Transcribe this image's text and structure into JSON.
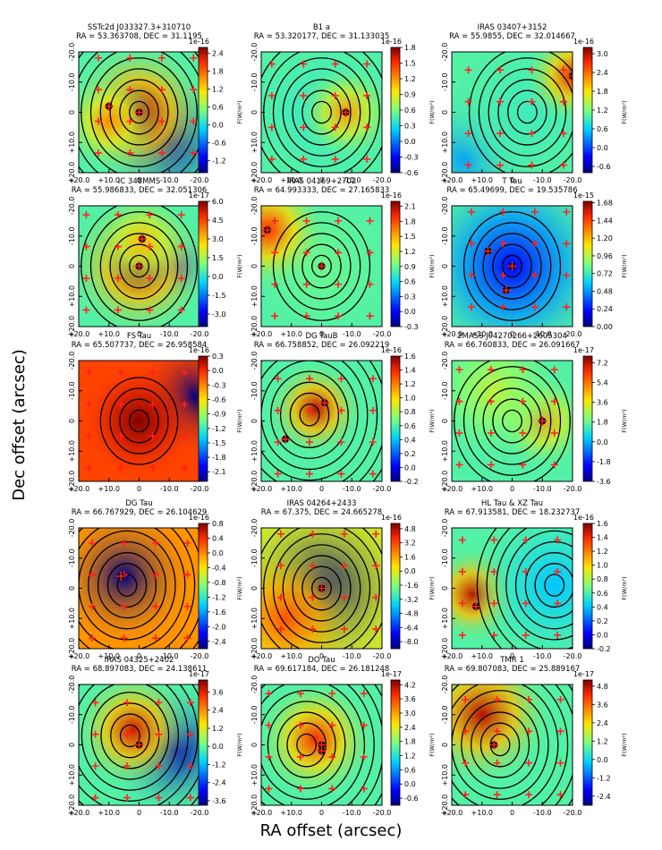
{
  "figure": {
    "xlabel": "RA offset (arcsec)",
    "ylabel": "Dec offset (arcsec)",
    "cbar_unit_label": "F(W/m²)",
    "x_ticks": [
      "+20.0",
      "+10.0",
      "0",
      "-10.0",
      "-20.0"
    ],
    "y_ticks": [
      "-20.0",
      "-10.0",
      "0",
      "+10.0",
      "+20.0"
    ]
  },
  "colors": {
    "low": "#0a1ee0",
    "mid": "#5bd2a0",
    "high": "#d6201a",
    "contour": "#000000",
    "marker": "#ff2020"
  },
  "chart_data": [
    {
      "type": "heatmap",
      "name": "SSTc2d J033327.3+310710",
      "coords": "RA = 53.363708, DEC = 31.1195",
      "exponent": "1e-16",
      "cbar_ticks": [
        "2.4",
        "1.8",
        "1.2",
        "0.6",
        "0.0",
        "-0.6",
        "-1.2"
      ],
      "vmin": -1.6,
      "vmax": 2.6,
      "xlim": [
        20,
        -20
      ],
      "ylim": [
        -20,
        20
      ],
      "sources": [
        {
          "ra": 0,
          "dec": 0,
          "amp": 2.4,
          "w": 6
        },
        {
          "ra": 10,
          "dec": 3,
          "amp": 1.6,
          "w": 4
        }
      ],
      "dips": [
        {
          "ra": -10,
          "dec": 10,
          "amp": 1.5,
          "w": 6
        }
      ],
      "contour_center": {
        "ra": 0,
        "dec": 0
      },
      "contour_levels": 8,
      "markers": [
        {
          "ra": 0,
          "dec": 0
        },
        {
          "ra": 10,
          "dec": -2
        }
      ]
    },
    {
      "type": "heatmap",
      "name": "B1 a",
      "coords": "RA = 53.320177, DEC = 31.133035",
      "exponent": "1e-16",
      "cbar_ticks": [
        "1.8",
        "1.5",
        "1.2",
        "0.9",
        "0.6",
        "0.3",
        "0.0",
        "-0.3",
        "-0.6"
      ],
      "vmin": -0.6,
      "vmax": 1.8,
      "xlim": [
        20,
        -20
      ],
      "ylim": [
        -20,
        20
      ],
      "sources": [
        {
          "ra": 0,
          "dec": 0,
          "amp": 0.4,
          "w": 7
        },
        {
          "ra": -8,
          "dec": 0,
          "amp": 1.2,
          "w": 4
        }
      ],
      "dips": [],
      "contour_center": {
        "ra": 0,
        "dec": 0
      },
      "contour_levels": 7,
      "markers": [
        {
          "ra": -8,
          "dec": 0
        }
      ]
    },
    {
      "type": "heatmap",
      "name": "IRAS 03407+3152",
      "coords": "RA = 55.9855, DEC = 32.014667",
      "exponent": "1e-16",
      "cbar_ticks": [
        "3.0",
        "2.4",
        "1.8",
        "1.2",
        "0.6",
        "0.0",
        "-0.6"
      ],
      "vmin": -0.8,
      "vmax": 3.2,
      "xlim": [
        20,
        -20
      ],
      "ylim": [
        -20,
        20
      ],
      "sources": [
        {
          "ra": -5,
          "dec": 0,
          "amp": 0.9,
          "w": 7
        },
        {
          "ra": -20,
          "dec": -12,
          "amp": 2.8,
          "w": 4
        }
      ],
      "dips": [
        {
          "ra": 15,
          "dec": 15,
          "amp": 0.6,
          "w": 6
        }
      ],
      "contour_center": {
        "ra": -5,
        "dec": 0
      },
      "contour_levels": 6,
      "markers": [
        {
          "ra": -20,
          "dec": -12
        }
      ]
    },
    {
      "type": "heatmap",
      "name": "IC 348MMS",
      "coords": "RA = 55.986833, DEC = 32.051306",
      "exponent": "1e-17",
      "cbar_ticks": [
        "6.0",
        "4.5",
        "3.0",
        "1.5",
        "0.0",
        "-1.5",
        "-3.0"
      ],
      "vmin": -4.0,
      "vmax": 6.0,
      "xlim": [
        20,
        -20
      ],
      "ylim": [
        -20,
        20
      ],
      "sources": [
        {
          "ra": 0,
          "dec": 0,
          "amp": 5.5,
          "w": 6
        },
        {
          "ra": -1,
          "dec": -8,
          "amp": 3.0,
          "w": 4
        }
      ],
      "dips": [
        {
          "ra": -12,
          "dec": 0,
          "amp": 3.0,
          "w": 3
        }
      ],
      "contour_center": {
        "ra": 0,
        "dec": 0
      },
      "contour_levels": 6,
      "markers": [
        {
          "ra": 0,
          "dec": 0
        },
        {
          "ra": -1,
          "dec": -9
        }
      ]
    },
    {
      "type": "heatmap",
      "name": "IRAS 04169+2702",
      "coords": "RA = 64.993333, DEC = 27.165833",
      "exponent": "1e-16",
      "cbar_ticks": [
        "2.1",
        "1.8",
        "1.5",
        "1.2",
        "0.9",
        "0.6",
        "0.3",
        "0.0",
        "-0.3"
      ],
      "vmin": -0.3,
      "vmax": 2.2,
      "xlim": [
        20,
        -20
      ],
      "ylim": [
        -20,
        20
      ],
      "sources": [
        {
          "ra": 0,
          "dec": 0,
          "amp": 0.9,
          "w": 7
        },
        {
          "ra": 18,
          "dec": -12,
          "amp": 1.9,
          "w": 5
        }
      ],
      "dips": [],
      "contour_center": {
        "ra": 0,
        "dec": 0
      },
      "contour_levels": 5,
      "markers": [
        {
          "ra": 0,
          "dec": 0
        },
        {
          "ra": 18,
          "dec": -12
        }
      ]
    },
    {
      "type": "heatmap",
      "name": "T Tau",
      "coords": "RA = 65.49699, DEC = 19.535786",
      "exponent": "1e-15",
      "cbar_ticks": [
        "1.68",
        "1.44",
        "1.20",
        "0.96",
        "0.72",
        "0.48",
        "0.24",
        "0.00"
      ],
      "vmin": 0.0,
      "vmax": 1.7,
      "xlim": [
        20,
        -20
      ],
      "ylim": [
        -20,
        20
      ],
      "sources": [
        {
          "ra": 0,
          "dec": 0,
          "amp": 0.2,
          "w": 9
        }
      ],
      "dips": [],
      "contour_center": {
        "ra": 0,
        "dec": 0
      },
      "contour_levels": 5,
      "markers": [
        {
          "ra": 0,
          "dec": 0
        },
        {
          "ra": 8,
          "dec": -5
        },
        {
          "ra": 2,
          "dec": 8
        }
      ]
    },
    {
      "type": "heatmap",
      "name": "FS Tau",
      "coords": "RA = 65.507737, DEC = 26.958584",
      "exponent": "1e-16",
      "cbar_ticks": [
        "0.3",
        "0.0",
        "-0.3",
        "-0.6",
        "-0.9",
        "-1.2",
        "-1.5",
        "-1.8",
        "-2.1"
      ],
      "vmin": -2.3,
      "vmax": 0.3,
      "xlim": [
        20,
        -20
      ],
      "ylim": [
        -20,
        20
      ],
      "sources": [
        {
          "ra": 0,
          "dec": 0,
          "amp": 0.5,
          "w": 5
        }
      ],
      "dips": [
        {
          "ra": -18,
          "dec": -8,
          "amp": 2.4,
          "w": 5
        }
      ],
      "base": 0.85,
      "contour_center": {
        "ra": 0,
        "dec": 0
      },
      "contour_levels": 4,
      "markers": []
    },
    {
      "type": "heatmap",
      "name": "DG TauB",
      "coords": "RA = 66.758852, DEC = 26.092219",
      "exponent": "1e-16",
      "cbar_ticks": [
        "1.6",
        "1.4",
        "1.2",
        "1.0",
        "0.8",
        "0.6",
        "0.4",
        "0.2",
        "0.0",
        "-0.2"
      ],
      "vmin": -0.2,
      "vmax": 1.6,
      "xlim": [
        20,
        -20
      ],
      "ylim": [
        -20,
        20
      ],
      "sources": [
        {
          "ra": 2,
          "dec": -4,
          "amp": 1.5,
          "w": 4
        }
      ],
      "dips": [],
      "contour_center": {
        "ra": 4,
        "dec": -2
      },
      "contour_levels": 9,
      "markers": [
        {
          "ra": -1,
          "dec": -6
        },
        {
          "ra": 12,
          "dec": 6
        }
      ]
    },
    {
      "type": "heatmap",
      "name": "2MASS J04270266+2605304",
      "coords": "RA = 66.760833, DEC = 26.091667",
      "exponent": "1e-17",
      "cbar_ticks": [
        "7.2",
        "5.4",
        "3.6",
        "1.8",
        "0.0",
        "-1.8",
        "-3.6"
      ],
      "vmin": -3.6,
      "vmax": 7.8,
      "xlim": [
        20,
        -20
      ],
      "ylim": [
        -20,
        20
      ],
      "sources": [
        {
          "ra": -10,
          "dec": 0,
          "amp": 5.0,
          "w": 4
        },
        {
          "ra": 6,
          "dec": -10,
          "amp": 3.0,
          "w": 6
        }
      ],
      "dips": [],
      "contour_center": {
        "ra": 0,
        "dec": 0
      },
      "contour_levels": 6,
      "markers": [
        {
          "ra": -10,
          "dec": 0
        }
      ]
    },
    {
      "type": "heatmap",
      "name": "DG Tau",
      "coords": "RA = 66.767929, DEC = 26.104629",
      "exponent": "1e-16",
      "cbar_ticks": [
        "0.8",
        "0.4",
        "0.0",
        "-0.4",
        "-0.8",
        "-1.2",
        "-1.6",
        "-2.0",
        "-2.4"
      ],
      "vmin": -2.6,
      "vmax": 0.8,
      "xlim": [
        20,
        -20
      ],
      "ylim": [
        -20,
        20
      ],
      "sources": [],
      "dips": [
        {
          "ra": 5,
          "dec": -4,
          "amp": 3.0,
          "w": 6
        }
      ],
      "base": 0.75,
      "contour_center": {
        "ra": 4,
        "dec": -1
      },
      "contour_levels": 10,
      "markers": [
        {
          "ra": 6,
          "dec": -4
        }
      ]
    },
    {
      "type": "heatmap",
      "name": "IRAS 04264+2433",
      "coords": "RA = 67.375, DEC = 24.665278",
      "exponent": "1e-16",
      "cbar_ticks": [
        "4.8",
        "3.2",
        "1.6",
        "0.0",
        "-1.6",
        "-3.2",
        "-4.8",
        "-6.4",
        "-8.0"
      ],
      "vmin": -8.8,
      "vmax": 5.4,
      "xlim": [
        20,
        -20
      ],
      "ylim": [
        -20,
        20
      ],
      "sources": [
        {
          "ra": 12,
          "dec": 10,
          "amp": 3.0,
          "w": 6
        }
      ],
      "dips": [
        {
          "ra": 0,
          "dec": 0,
          "amp": 8.0,
          "w": 8
        }
      ],
      "base": 0.6,
      "contour_center": {
        "ra": 0,
        "dec": 0
      },
      "contour_levels": 7,
      "markers": [
        {
          "ra": 0,
          "dec": 0
        }
      ]
    },
    {
      "type": "heatmap",
      "name": "HL Tau & XZ Tau",
      "coords": "RA = 67.913581, DEC = 18.232737",
      "exponent": "1e-16",
      "cbar_ticks": [
        "1.6",
        "1.4",
        "1.2",
        "1.0",
        "0.8",
        "0.6",
        "0.4",
        "0.2",
        "0.0",
        "-0.2"
      ],
      "vmin": -0.2,
      "vmax": 1.6,
      "xlim": [
        20,
        -20
      ],
      "ylim": [
        -20,
        20
      ],
      "sources": [
        {
          "ra": 13,
          "dec": 2,
          "amp": 1.5,
          "w": 4
        },
        {
          "ra": -14,
          "dec": -1,
          "amp": 0.4,
          "w": 7
        }
      ],
      "dips": [],
      "contour_center": {
        "ra": -14,
        "dec": -1
      },
      "contour_levels": 8,
      "markers": [
        {
          "ra": 12,
          "dec": 6
        }
      ]
    },
    {
      "type": "heatmap",
      "name": "IRAS 04325+2402",
      "coords": "RA = 68.897083, DEC = 24.138611",
      "exponent": "1e-17",
      "cbar_ticks": [
        "3.6",
        "2.4",
        "1.2",
        "0.0",
        "-1.2",
        "-2.4",
        "-3.6"
      ],
      "vmin": -3.9,
      "vmax": 4.4,
      "xlim": [
        20,
        -20
      ],
      "ylim": [
        -20,
        20
      ],
      "sources": [
        {
          "ra": 2,
          "dec": -5,
          "amp": 3.8,
          "w": 5
        }
      ],
      "dips": [
        {
          "ra": -12,
          "dec": 2,
          "amp": 3.0,
          "w": 6
        }
      ],
      "contour_center": {
        "ra": 3,
        "dec": -3
      },
      "contour_levels": 9,
      "markers": [
        {
          "ra": 0,
          "dec": 0
        }
      ]
    },
    {
      "type": "heatmap",
      "name": "DO Tau",
      "coords": "RA = 69.617184, DEC = 26.181248",
      "exponent": "1e-17",
      "cbar_ticks": [
        "4.2",
        "3.6",
        "3.0",
        "2.4",
        "1.8",
        "1.2",
        "0.6",
        "0.0",
        "-0.6"
      ],
      "vmin": -0.9,
      "vmax": 4.4,
      "xlim": [
        20,
        -20
      ],
      "ylim": [
        -20,
        20
      ],
      "sources": [
        {
          "ra": 2,
          "dec": -2,
          "amp": 3.8,
          "w": 5
        }
      ],
      "dips": [],
      "contour_center": {
        "ra": 5,
        "dec": 0
      },
      "contour_levels": 9,
      "markers": [
        {
          "ra": 0,
          "dec": 0
        },
        {
          "ra": 0,
          "dec": 2
        }
      ]
    },
    {
      "type": "heatmap",
      "name": "TMR 1",
      "coords": "RA = 69.807083, DEC = 25.889167",
      "exponent": "1e-17",
      "cbar_ticks": [
        "4.8",
        "3.6",
        "2.4",
        "1.2",
        "0.0",
        "-1.2",
        "-2.4"
      ],
      "vmin": -3.0,
      "vmax": 5.2,
      "xlim": [
        20,
        -20
      ],
      "ylim": [
        -20,
        20
      ],
      "sources": [
        {
          "ra": 10,
          "dec": -10,
          "amp": 4.8,
          "w": 6
        }
      ],
      "dips": [],
      "contour_center": {
        "ra": 4,
        "dec": 0
      },
      "contour_levels": 10,
      "markers": [
        {
          "ra": 6,
          "dec": 0
        }
      ]
    }
  ]
}
